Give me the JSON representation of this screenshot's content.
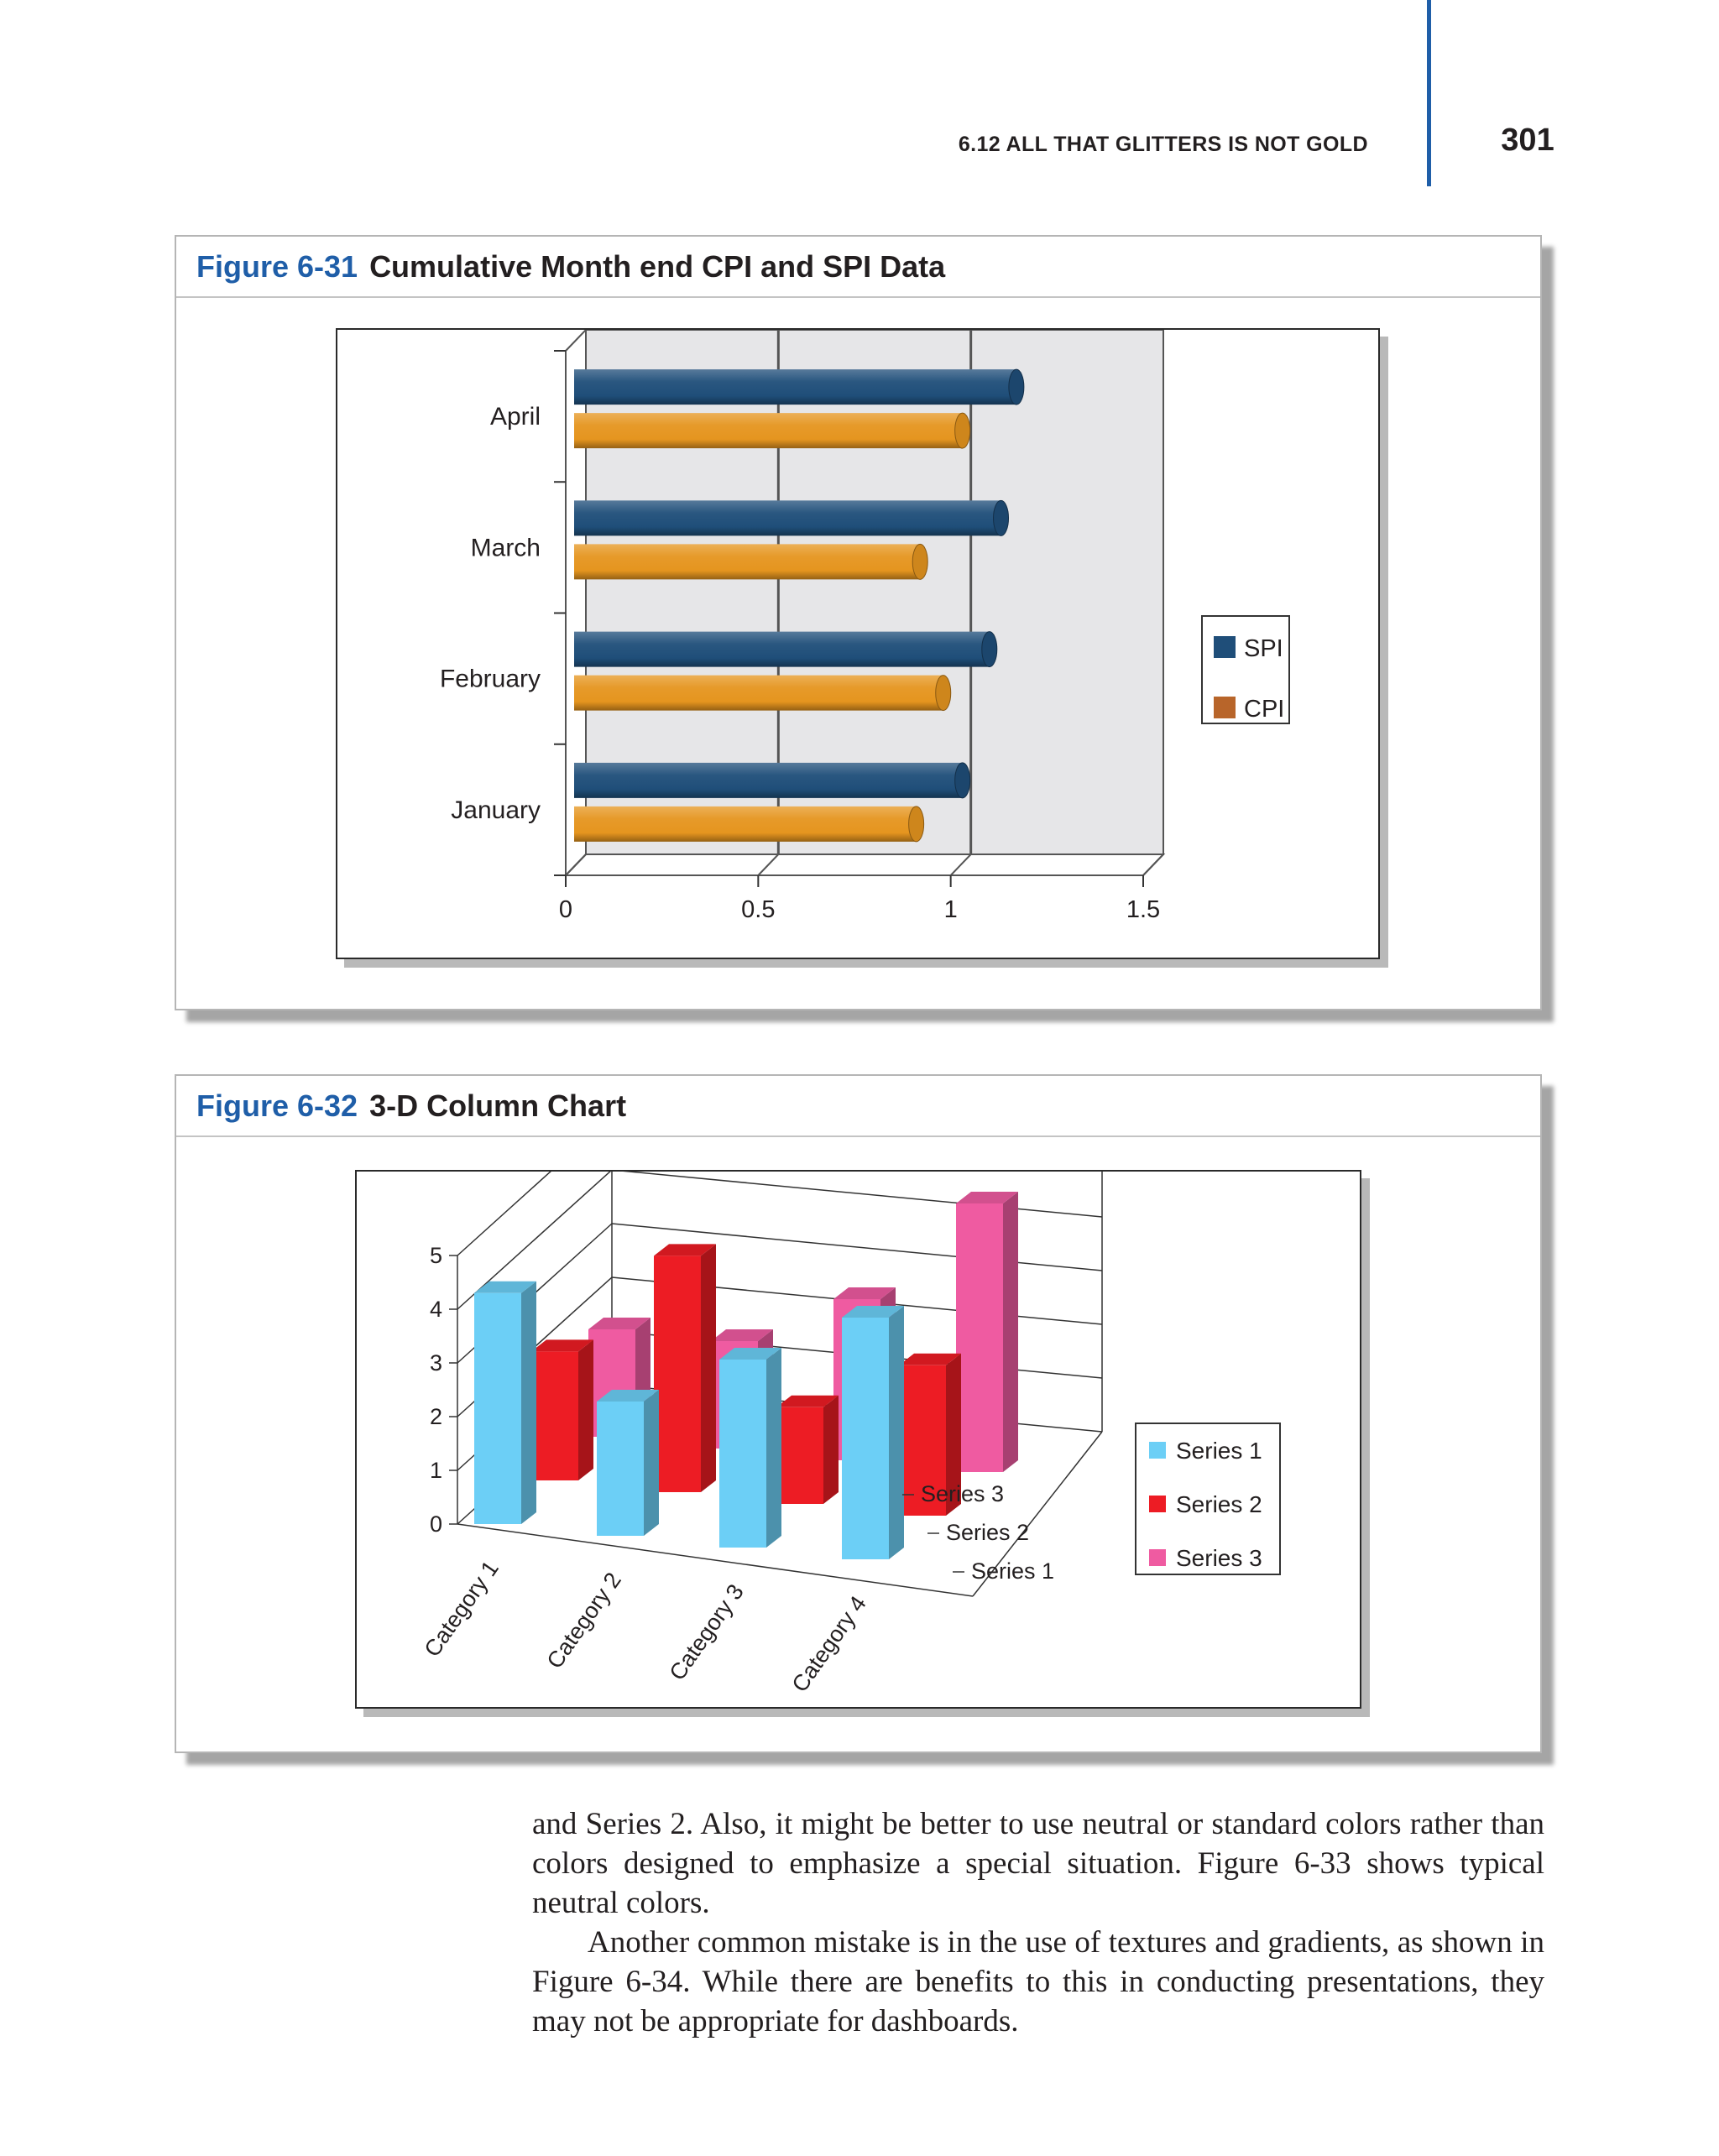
{
  "header": {
    "running_head": "6.12 ALL THAT GLITTERS IS NOT GOLD",
    "page_number": "301"
  },
  "figures": [
    {
      "number": "Figure 6-31",
      "title": "Cumulative Month end CPI and SPI Data"
    },
    {
      "number": "Figure 6-32",
      "title": "3-D Column Chart"
    }
  ],
  "chart_data": [
    {
      "type": "bar",
      "orientation": "horizontal",
      "style": "3-D cylinders",
      "categories": [
        "January",
        "February",
        "March",
        "April"
      ],
      "series": [
        {
          "name": "SPI",
          "values": [
            1.0,
            1.07,
            1.1,
            1.14
          ],
          "color": "#1f4e79"
        },
        {
          "name": "CPI",
          "values": [
            0.88,
            0.95,
            0.89,
            1.0
          ],
          "color": "#e5951f"
        }
      ],
      "x_ticks": [
        "0",
        "0.5",
        "1",
        "1.5"
      ],
      "xlim": [
        0,
        1.5
      ],
      "grid": true,
      "legend_position": "right"
    },
    {
      "type": "bar",
      "orientation": "vertical",
      "style": "3-D columns",
      "categories": [
        "Category 1",
        "Category 2",
        "Category 3",
        "Category 4"
      ],
      "series": [
        {
          "name": "Series 1",
          "values": [
            4.3,
            2.5,
            3.5,
            4.5
          ],
          "color": "#6ccff6"
        },
        {
          "name": "Series 2",
          "values": [
            2.4,
            4.4,
            1.8,
            2.8
          ],
          "color": "#ed1c24"
        },
        {
          "name": "Series 3",
          "values": [
            2,
            2,
            3,
            5
          ],
          "color": "#ef5ba1"
        }
      ],
      "y_ticks": [
        "0",
        "1",
        "2",
        "3",
        "4",
        "5"
      ],
      "ylim": [
        0,
        5
      ],
      "depth_labels": [
        "Series 1",
        "Series 2",
        "Series 3"
      ],
      "legend_position": "right"
    }
  ],
  "body": {
    "para1": "and Series 2. Also, it might be better to use neutral or standard colors rather than colors designed to emphasize a special situation. Figure 6-33 shows typical neutral colors.",
    "para2": "Another common mistake is in the use of textures and gradients, as shown in Figure 6-34. While there are benefits to this in conducting presentations, they may not be appropriate for dashboards."
  }
}
